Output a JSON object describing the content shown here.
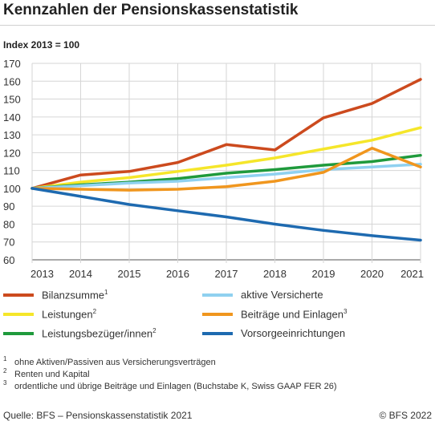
{
  "title": "Kennzahlen der Pensionskassenstatistik",
  "subtitle": "Index 2013 = 100",
  "chart_data": {
    "type": "line",
    "x": [
      "2013",
      "2014",
      "2015",
      "2016",
      "2017",
      "2018",
      "2019",
      "2020",
      "2021"
    ],
    "ylim": [
      60,
      170
    ],
    "yticks": [
      60,
      70,
      80,
      90,
      100,
      110,
      120,
      130,
      140,
      150,
      160,
      170
    ],
    "grid": true,
    "series": [
      {
        "name": "Bilanzsumme",
        "sup": "1",
        "color": "#cc4a1e",
        "values": [
          100,
          107.5,
          109.5,
          114.5,
          124.5,
          121.5,
          139.5,
          147.5,
          161
        ]
      },
      {
        "name": "Leistungen",
        "sup": "2",
        "color": "#f5e62a",
        "values": [
          100,
          103.5,
          106,
          109.5,
          113,
          117,
          122,
          127,
          134
        ]
      },
      {
        "name": "Leistungsbezüger/innen",
        "sup": "2",
        "color": "#1f9a3c",
        "values": [
          100,
          102,
          103.5,
          105.5,
          108.5,
          110.5,
          113,
          115,
          118.5
        ]
      },
      {
        "name": "aktive Versicherte",
        "sup": "",
        "color": "#8fd1f0",
        "values": [
          100,
          101.5,
          103,
          104,
          106,
          108,
          110.5,
          112,
          113.5
        ]
      },
      {
        "name": "Beiträge und Einlagen",
        "sup": "3",
        "color": "#f0961e",
        "values": [
          100,
          99.5,
          99,
          99.5,
          101,
          104,
          109,
          122.5,
          112
        ]
      },
      {
        "name": "Vorsorgeeinrichtungen",
        "sup": "",
        "color": "#1e6ab0",
        "values": [
          100,
          95.5,
          91,
          87.5,
          84,
          80,
          76.5,
          73.5,
          71
        ]
      }
    ]
  },
  "legend": [
    {
      "label": "Bilanzsumme",
      "sup": "1",
      "color": "#cc4a1e"
    },
    {
      "label": "aktive Versicherte",
      "sup": "",
      "color": "#8fd1f0"
    },
    {
      "label": "Leistungen",
      "sup": "2",
      "color": "#f5e62a"
    },
    {
      "label": "Beiträge und Einlagen",
      "sup": "3",
      "color": "#f0961e"
    },
    {
      "label": "Leistungsbezüger/innen",
      "sup": "2",
      "color": "#1f9a3c"
    },
    {
      "label": "Vorsorgeeinrichtungen",
      "sup": "",
      "color": "#1e6ab0"
    }
  ],
  "footnotes": [
    {
      "num": "1",
      "text": "ohne Aktiven/Passiven aus Versicherungsverträgen"
    },
    {
      "num": "2",
      "text": "Renten und Kapital"
    },
    {
      "num": "3",
      "text": "ordentliche und übrige Beiträge und Einlagen (Buchstabe K, Swiss GAAP FER 26)"
    }
  ],
  "source": "Quelle: BFS – Pensionskassenstatistik 2021",
  "copyright": "© BFS 2022"
}
